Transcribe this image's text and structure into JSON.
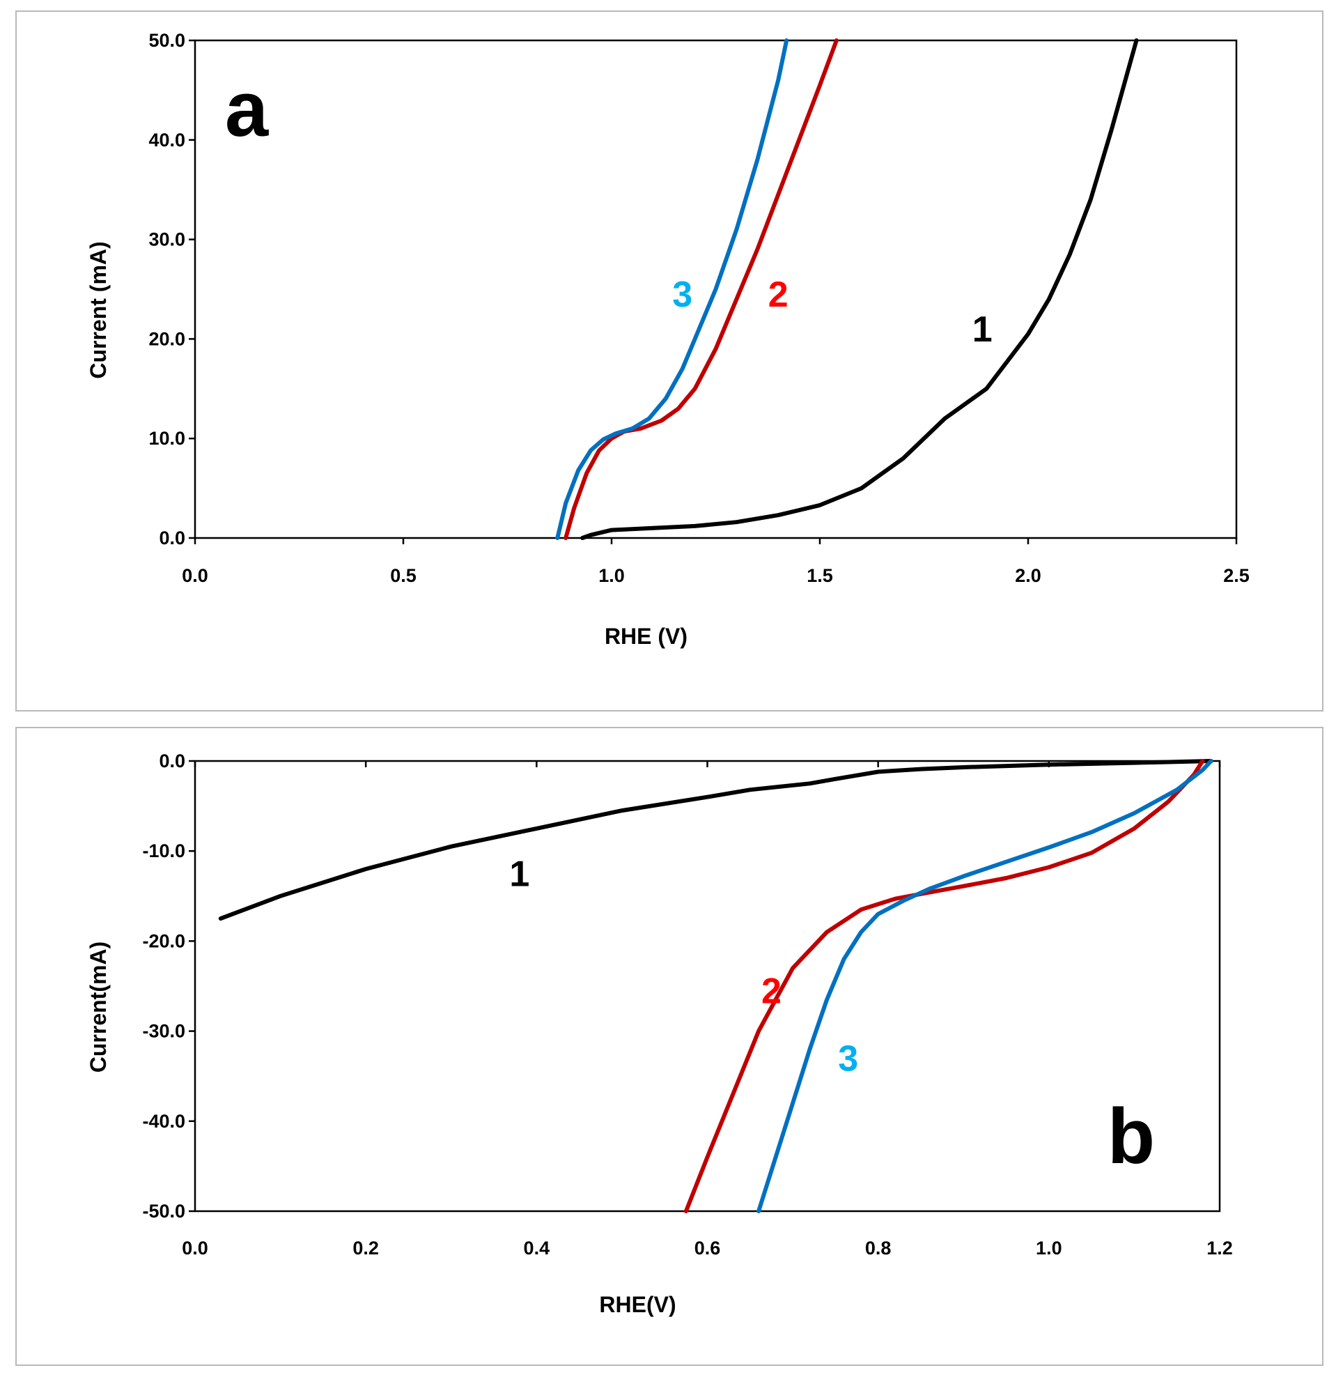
{
  "chart_data": [
    {
      "type": "line",
      "panel_label": "a",
      "xlabel": "RHE (V)",
      "ylabel": "Current (mA)",
      "xlim": [
        0,
        2.5
      ],
      "ylim": [
        0,
        50
      ],
      "x_ticks": [
        "0.0",
        "0.5",
        "1.0",
        "1.5",
        "2.0",
        "2.5"
      ],
      "y_ticks": [
        "0.0",
        "10.0",
        "20.0",
        "30.0",
        "40.0",
        "50.0"
      ],
      "grid": false,
      "series": [
        {
          "name": "1",
          "color": "#000000",
          "label_color": "#000000",
          "x": [
            0.93,
            0.95,
            1.0,
            1.1,
            1.2,
            1.3,
            1.4,
            1.5,
            1.6,
            1.7,
            1.8,
            1.9,
            2.0,
            2.05,
            2.1,
            2.15,
            2.2,
            2.25,
            2.26
          ],
          "y": [
            0.0,
            0.3,
            0.8,
            1.0,
            1.2,
            1.6,
            2.3,
            3.3,
            5.0,
            8.0,
            12.0,
            15.0,
            20.5,
            24.0,
            28.5,
            34.0,
            41.0,
            48.5,
            50.0
          ],
          "label_pos": [
            1.89,
            21.0
          ]
        },
        {
          "name": "2",
          "color": "#c00000",
          "label_color": "#ff0000",
          "x": [
            0.89,
            0.91,
            0.94,
            0.97,
            1.0,
            1.03,
            1.07,
            1.12,
            1.16,
            1.2,
            1.25,
            1.3,
            1.35,
            1.4,
            1.45,
            1.5,
            1.54
          ],
          "y": [
            0.0,
            3.0,
            6.5,
            8.8,
            10.0,
            10.7,
            11.0,
            11.8,
            13.0,
            15.0,
            19.0,
            24.0,
            29.0,
            34.5,
            40.0,
            45.5,
            50.0
          ],
          "label_pos": [
            1.4,
            24.5
          ]
        },
        {
          "name": "3",
          "color": "#0070c0",
          "label_color": "#00b0f0",
          "x": [
            0.87,
            0.89,
            0.92,
            0.95,
            0.98,
            1.01,
            1.05,
            1.09,
            1.13,
            1.17,
            1.21,
            1.25,
            1.3,
            1.35,
            1.4,
            1.42
          ],
          "y": [
            0.0,
            3.5,
            6.8,
            8.8,
            9.9,
            10.5,
            11.0,
            12.0,
            14.0,
            17.0,
            21.0,
            25.0,
            31.0,
            38.0,
            46.0,
            50.0
          ],
          "label_pos": [
            1.17,
            24.5
          ]
        }
      ]
    },
    {
      "type": "line",
      "panel_label": "b",
      "xlabel": "RHE(V)",
      "ylabel": "Current(mA)",
      "xlim": [
        0,
        1.2
      ],
      "ylim": [
        -50,
        0
      ],
      "x_ticks": [
        "0.0",
        "0.2",
        "0.4",
        "0.6",
        "0.8",
        "1.0",
        "1.2"
      ],
      "y_ticks": [
        "0.0",
        "-10.0",
        "-20.0",
        "-30.0",
        "-40.0",
        "-50.0"
      ],
      "grid": false,
      "series": [
        {
          "name": "1",
          "color": "#000000",
          "label_color": "#000000",
          "x": [
            0.03,
            0.1,
            0.2,
            0.3,
            0.4,
            0.5,
            0.6,
            0.65,
            0.72,
            0.75,
            0.8,
            0.85,
            0.9,
            1.0,
            1.1,
            1.19
          ],
          "y": [
            -17.5,
            -15.0,
            -12.0,
            -9.5,
            -7.5,
            -5.5,
            -4.0,
            -3.2,
            -2.5,
            -2.0,
            -1.2,
            -0.9,
            -0.7,
            -0.4,
            -0.2,
            0.0
          ],
          "label_pos": [
            0.38,
            -12.5
          ]
        },
        {
          "name": "2",
          "color": "#c00000",
          "label_color": "#ff0000",
          "x": [
            0.575,
            0.6,
            0.63,
            0.66,
            0.7,
            0.74,
            0.78,
            0.82,
            0.86,
            0.9,
            0.95,
            1.0,
            1.05,
            1.1,
            1.14,
            1.17,
            1.18
          ],
          "y": [
            -50.0,
            -44.0,
            -37.0,
            -30.0,
            -23.0,
            -19.0,
            -16.5,
            -15.3,
            -14.6,
            -13.9,
            -13.0,
            -11.8,
            -10.2,
            -7.5,
            -4.5,
            -1.5,
            0.0
          ],
          "label_pos": [
            0.675,
            -25.5
          ]
        },
        {
          "name": "3",
          "color": "#0070c0",
          "label_color": "#00b0f0",
          "x": [
            0.66,
            0.68,
            0.7,
            0.72,
            0.74,
            0.76,
            0.78,
            0.8,
            0.83,
            0.86,
            0.9,
            0.95,
            1.0,
            1.05,
            1.1,
            1.15,
            1.18,
            1.19
          ],
          "y": [
            -50.0,
            -44.0,
            -38.0,
            -32.0,
            -26.5,
            -22.0,
            -19.0,
            -17.0,
            -15.5,
            -14.2,
            -12.8,
            -11.2,
            -9.6,
            -7.9,
            -5.8,
            -3.2,
            -1.0,
            0.0
          ],
          "label_pos": [
            0.765,
            -33.0
          ]
        }
      ]
    }
  ]
}
